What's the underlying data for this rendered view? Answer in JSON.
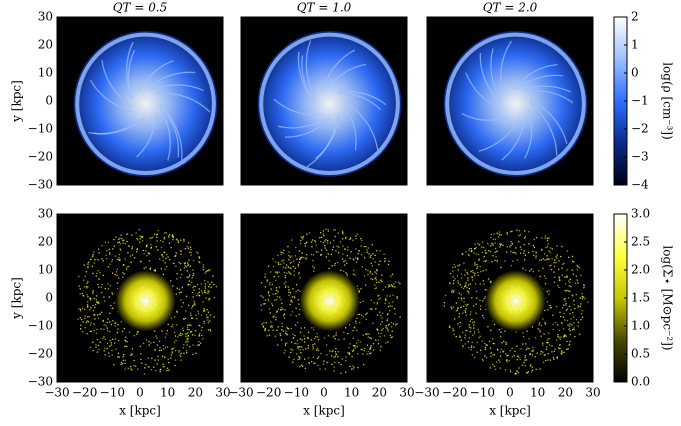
{
  "chart_data": [
    {
      "type": "image",
      "title": "QT = 0.5",
      "ylabel": "y [kpc]",
      "xlim": [
        -30,
        30
      ],
      "ylim": [
        -30,
        30
      ],
      "yticks": [
        {
          "value": -30,
          "label": "−30"
        },
        {
          "value": -20,
          "label": "−20"
        },
        {
          "value": -10,
          "label": "−10"
        },
        0,
        10,
        20,
        30
      ]
    },
    {
      "type": "image",
      "title": "QT = 1.0",
      "xlim": [
        -30,
        30
      ],
      "ylim": [
        -30,
        30
      ]
    },
    {
      "type": "image",
      "title": "QT = 2.0",
      "xlim": [
        -30,
        30
      ],
      "ylim": [
        -30,
        30
      ]
    },
    {
      "type": "image",
      "xlabel": "x [kpc]",
      "ylabel": "y [kpc]",
      "xlim": [
        -30,
        30
      ],
      "ylim": [
        -30,
        30
      ],
      "xticks": [
        {
          "value": -30,
          "label": "−30"
        },
        {
          "value": -20,
          "label": "−20"
        },
        {
          "value": -10,
          "label": "−10"
        },
        0,
        10,
        20,
        30
      ],
      "yticks": [
        {
          "value": -30,
          "label": "−30"
        },
        {
          "value": -20,
          "label": "−20"
        },
        {
          "value": -10,
          "label": "−10"
        },
        0,
        10,
        20,
        30
      ]
    },
    {
      "type": "image",
      "xlabel": "x [kpc]",
      "xlim": [
        -30,
        30
      ],
      "ylim": [
        -30,
        30
      ],
      "xticks": [
        {
          "value": -30,
          "label": "−30"
        },
        {
          "value": -20,
          "label": "−20"
        },
        {
          "value": -10,
          "label": "−10"
        },
        0,
        10,
        20,
        30
      ]
    },
    {
      "type": "image",
      "xlabel": "x [kpc]",
      "xlim": [
        -30,
        30
      ],
      "ylim": [
        -30,
        30
      ],
      "xticks": [
        {
          "value": -30,
          "label": "−30"
        },
        {
          "value": -20,
          "label": "−20"
        },
        {
          "value": -10,
          "label": "−10"
        },
        0,
        10,
        20,
        30
      ]
    },
    {
      "type": "colorbar",
      "label": "log(ρ [cm⁻³])",
      "ylim": [
        -4,
        2
      ],
      "yticks": [
        {
          "value": -4,
          "label": "−4"
        },
        {
          "value": -3,
          "label": "−3"
        },
        {
          "value": -2,
          "label": "−2"
        },
        {
          "value": -1,
          "label": "−1"
        },
        0,
        1,
        2
      ],
      "colors": [
        "#000010",
        "#0a2a8a",
        "#2f6fff",
        "#9cc0ff",
        "#ffffff"
      ]
    },
    {
      "type": "colorbar",
      "label": "log(Σ⋆ [M⊙pc⁻²])",
      "ylim": [
        0,
        3
      ],
      "yticks": [
        {
          "value": 0,
          "label": "0.0"
        },
        0.5,
        {
          "value": 1,
          "label": "1.0"
        },
        1.5,
        {
          "value": 2,
          "label": "2.0"
        },
        2.5,
        {
          "value": 3,
          "label": "3.0"
        }
      ],
      "colors": [
        "#000000",
        "#4a4a00",
        "#c8c800",
        "#ffff40",
        "#ffffff"
      ]
    }
  ]
}
